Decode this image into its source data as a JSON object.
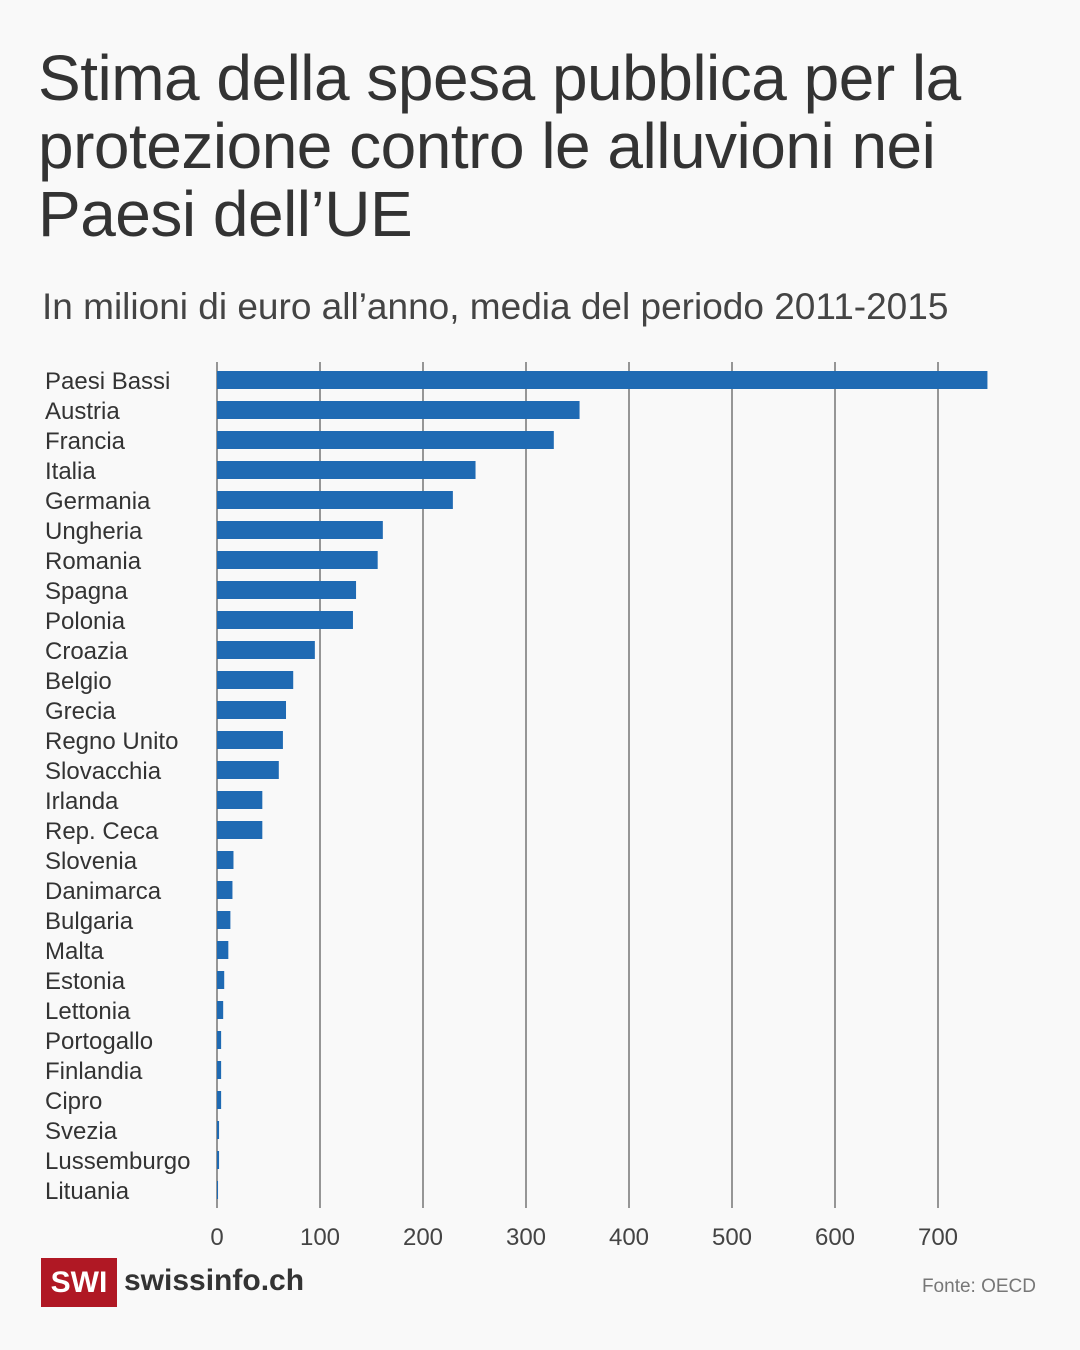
{
  "header": {
    "title": "Stima della spesa pubblica per la protezione contro le alluvioni nei Paesi dell’UE",
    "subtitle": "In milioni di euro all’anno, media del periodo 2011-2015"
  },
  "footer": {
    "logo": "SWI",
    "brand": "swissinfo.ch",
    "source": "Fonte: OECD"
  },
  "colors": {
    "bar": "#1f6ab3",
    "grid": "#333333",
    "logo_bg": "#b01824"
  },
  "chart_data": {
    "type": "bar",
    "orientation": "horizontal",
    "categories": [
      "Paesi Bassi",
      "Austria",
      "Francia",
      "Italia",
      "Germania",
      "Ungheria",
      "Romania",
      "Spagna",
      "Polonia",
      "Croazia",
      "Belgio",
      "Grecia",
      "Regno Unito",
      "Slovacchia",
      "Irlanda",
      "Rep. Ceca",
      "Slovenia",
      "Danimarca",
      "Bulgaria",
      "Malta",
      "Estonia",
      "Lettonia",
      "Portogallo",
      "Finlandia",
      "Cipro",
      "Svezia",
      "Lussemburgo",
      "Lituania"
    ],
    "values": [
      748,
      352,
      327,
      251,
      229,
      161,
      156,
      135,
      132,
      95,
      74,
      67,
      64,
      60,
      44,
      44,
      16,
      15,
      13,
      11,
      7,
      6,
      4,
      4,
      4,
      2,
      2,
      1
    ],
    "xlim": [
      0,
      750
    ],
    "xticks": [
      0,
      100,
      200,
      300,
      400,
      500,
      600,
      700
    ],
    "grid": true
  }
}
